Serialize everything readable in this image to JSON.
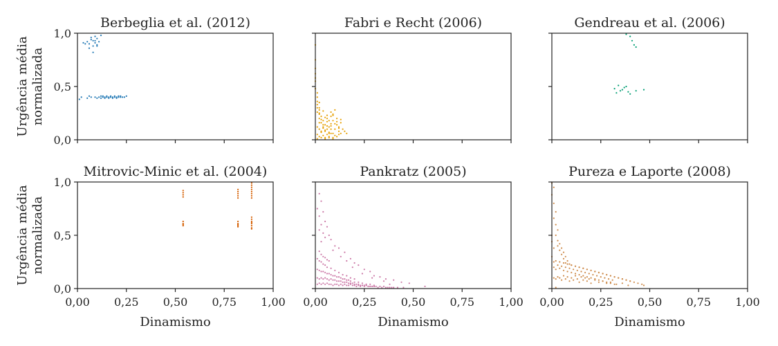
{
  "figure": {
    "xlabel": "Dinamismo",
    "ylabel_line1": "Urgência média",
    "ylabel_line2": "normalizada",
    "x_ticks": [
      "0,00",
      "0,25",
      "0,50",
      "0,75",
      "1,00"
    ],
    "y_ticks": [
      "0,0",
      "0,5",
      "1,0"
    ]
  },
  "chart_data": [
    {
      "type": "scatter",
      "title": "Berbeglia et al. (2012)",
      "color": "#1f77b4",
      "xlabel": "",
      "ylabel": "Urgência média normalizada",
      "xlim": [
        0,
        1
      ],
      "ylim": [
        0,
        1
      ],
      "grid": false,
      "x": [
        0.05,
        0.06,
        0.07,
        0.07,
        0.08,
        0.08,
        0.09,
        0.09,
        0.1,
        0.1,
        0.11,
        0.04,
        0.06,
        0.08,
        0.09,
        0.1,
        0.12,
        0.03,
        0.01,
        0.02,
        0.05,
        0.06,
        0.07,
        0.09,
        0.1,
        0.11,
        0.12,
        0.12,
        0.13,
        0.13,
        0.14,
        0.14,
        0.15,
        0.15,
        0.16,
        0.16,
        0.17,
        0.17,
        0.18,
        0.18,
        0.19,
        0.19,
        0.2,
        0.2,
        0.21,
        0.21,
        0.22,
        0.22,
        0.23,
        0.24,
        0.25
      ],
      "y": [
        0.92,
        0.9,
        0.94,
        0.96,
        0.88,
        0.93,
        0.91,
        0.97,
        0.89,
        0.95,
        0.92,
        0.9,
        0.86,
        0.82,
        0.93,
        0.88,
        0.98,
        0.91,
        0.38,
        0.4,
        0.39,
        0.41,
        0.4,
        0.4,
        0.39,
        0.4,
        0.41,
        0.39,
        0.4,
        0.41,
        0.4,
        0.39,
        0.4,
        0.41,
        0.4,
        0.39,
        0.4,
        0.41,
        0.4,
        0.39,
        0.4,
        0.41,
        0.4,
        0.39,
        0.41,
        0.4,
        0.4,
        0.41,
        0.4,
        0.4,
        0.41
      ]
    },
    {
      "type": "scatter",
      "title": "Fabri e Recht (2006)",
      "color": "#e69f00",
      "xlabel": "",
      "ylabel": "",
      "xlim": [
        0,
        1
      ],
      "ylim": [
        0,
        1
      ],
      "grid": false,
      "x": [
        0.0,
        0.0,
        0.0,
        0.0,
        0.0,
        0.01,
        0.01,
        0.01,
        0.01,
        0.02,
        0.02,
        0.01,
        0.02,
        0.03,
        0.02,
        0.04,
        0.03,
        0.05,
        0.04,
        0.06,
        0.05,
        0.07,
        0.06,
        0.08,
        0.07,
        0.09,
        0.08,
        0.1,
        0.09,
        0.11,
        0.1,
        0.12,
        0.11,
        0.13,
        0.12,
        0.14,
        0.13,
        0.15,
        0.16,
        0.01,
        0.02,
        0.03,
        0.04,
        0.05,
        0.06,
        0.07,
        0.08,
        0.09,
        0.1,
        0.11,
        0.12,
        0.01,
        0.02,
        0.03,
        0.04,
        0.05,
        0.06,
        0.07,
        0.08,
        0.09,
        0.02,
        0.04,
        0.06,
        0.08,
        0.1,
        0.12,
        0.03,
        0.05,
        0.07,
        0.09,
        0.11,
        0.13,
        0.01,
        0.03,
        0.05,
        0.07,
        0.09,
        0.02,
        0.04,
        0.06,
        0.08,
        0.0,
        0.01,
        0.0,
        0.02
      ],
      "y": [
        0.89,
        0.75,
        0.67,
        0.58,
        0.48,
        0.44,
        0.4,
        0.36,
        0.33,
        0.3,
        0.28,
        0.26,
        0.24,
        0.22,
        0.2,
        0.18,
        0.16,
        0.14,
        0.12,
        0.1,
        0.08,
        0.06,
        0.2,
        0.15,
        0.12,
        0.18,
        0.22,
        0.1,
        0.24,
        0.14,
        0.28,
        0.08,
        0.2,
        0.16,
        0.12,
        0.1,
        0.06,
        0.08,
        0.06,
        0.05,
        0.03,
        0.07,
        0.04,
        0.02,
        0.05,
        0.03,
        0.06,
        0.02,
        0.04,
        0.03,
        0.05,
        0.12,
        0.1,
        0.08,
        0.11,
        0.09,
        0.13,
        0.07,
        0.1,
        0.06,
        0.16,
        0.14,
        0.17,
        0.13,
        0.15,
        0.11,
        0.19,
        0.21,
        0.18,
        0.23,
        0.17,
        0.19,
        0.01,
        0.02,
        0.01,
        0.02,
        0.01,
        0.25,
        0.27,
        0.23,
        0.26,
        0.55,
        0.3,
        0.62,
        0.35
      ]
    },
    {
      "type": "scatter",
      "title": "Gendreau et al. (2006)",
      "color": "#009e73",
      "xlabel": "",
      "ylabel": "",
      "xlim": [
        0,
        1
      ],
      "ylim": [
        0,
        1
      ],
      "grid": false,
      "x": [
        0.38,
        0.4,
        0.41,
        0.42,
        0.43,
        0.32,
        0.33,
        0.34,
        0.35,
        0.36,
        0.37,
        0.38,
        0.39,
        0.4,
        0.43,
        0.47
      ],
      "y": [
        0.99,
        0.97,
        0.93,
        0.89,
        0.87,
        0.48,
        0.44,
        0.51,
        0.46,
        0.47,
        0.49,
        0.5,
        0.45,
        0.43,
        0.46,
        0.47
      ]
    },
    {
      "type": "scatter",
      "title": "Mitrovic-Minic et al. (2004)",
      "color": "#d55e00",
      "xlabel": "Dinamismo",
      "ylabel": "Urgência média normalizada",
      "xlim": [
        0,
        1
      ],
      "ylim": [
        0,
        1
      ],
      "grid": false,
      "x": [
        0.54,
        0.54,
        0.54,
        0.54,
        0.54,
        0.54,
        0.54,
        0.54,
        0.82,
        0.82,
        0.82,
        0.82,
        0.82,
        0.82,
        0.82,
        0.82,
        0.82,
        0.82,
        0.89,
        0.89,
        0.89,
        0.89,
        0.89,
        0.89,
        0.89,
        0.89,
        0.89,
        0.89,
        0.89,
        0.89,
        0.89,
        0.89,
        0.89,
        0.89
      ],
      "y": [
        0.92,
        0.9,
        0.88,
        0.86,
        0.63,
        0.61,
        0.6,
        0.59,
        0.93,
        0.91,
        0.89,
        0.87,
        0.85,
        0.63,
        0.61,
        0.6,
        0.59,
        0.58,
        0.99,
        0.97,
        0.95,
        0.93,
        0.91,
        0.89,
        0.87,
        0.85,
        0.67,
        0.65,
        0.63,
        0.61,
        0.59,
        0.57,
        0.56,
        0.62
      ]
    },
    {
      "type": "scatter",
      "title": "Pankratz (2005)",
      "color": "#cc79a7",
      "xlabel": "Dinamismo",
      "ylabel": "",
      "xlim": [
        0,
        1
      ],
      "ylim": [
        0,
        1
      ],
      "grid": false,
      "x": [
        0.02,
        0.03,
        0.01,
        0.04,
        0.02,
        0.05,
        0.03,
        0.06,
        0.02,
        0.04,
        0.07,
        0.05,
        0.08,
        0.03,
        0.1,
        0.12,
        0.09,
        0.15,
        0.13,
        0.18,
        0.16,
        0.2,
        0.22,
        0.19,
        0.25,
        0.28,
        0.24,
        0.3,
        0.33,
        0.29,
        0.36,
        0.4,
        0.35,
        0.44,
        0.48,
        0.38,
        0.56,
        0.01,
        0.02,
        0.03,
        0.04,
        0.05,
        0.06,
        0.07,
        0.08,
        0.09,
        0.1,
        0.11,
        0.12,
        0.13,
        0.14,
        0.15,
        0.16,
        0.17,
        0.18,
        0.19,
        0.2,
        0.21,
        0.22,
        0.23,
        0.24,
        0.25,
        0.26,
        0.27,
        0.28,
        0.29,
        0.3,
        0.31,
        0.32,
        0.33,
        0.34,
        0.35,
        0.36,
        0.37,
        0.38,
        0.39,
        0.4,
        0.42,
        0.45,
        0.01,
        0.02,
        0.03,
        0.04,
        0.05,
        0.06,
        0.07,
        0.08,
        0.09,
        0.1,
        0.11,
        0.12,
        0.13,
        0.14,
        0.15,
        0.16,
        0.17,
        0.18,
        0.19,
        0.2,
        0.21,
        0.22,
        0.23,
        0.24,
        0.25,
        0.26,
        0.27,
        0.28,
        0.29,
        0.3,
        0.01,
        0.02,
        0.03,
        0.04,
        0.05,
        0.06,
        0.07,
        0.08,
        0.09,
        0.1,
        0.11,
        0.12,
        0.13,
        0.14,
        0.15,
        0.16,
        0.17,
        0.18,
        0.2,
        0.22,
        0.24,
        0.26,
        0.28,
        0.3,
        0.01,
        0.02,
        0.03,
        0.04,
        0.05,
        0.06,
        0.08,
        0.1,
        0.12,
        0.14,
        0.16,
        0.18,
        0.2,
        0.02,
        0.03,
        0.04,
        0.05,
        0.06,
        0.07
      ],
      "y": [
        0.89,
        0.82,
        0.75,
        0.72,
        0.68,
        0.63,
        0.6,
        0.58,
        0.55,
        0.52,
        0.5,
        0.48,
        0.46,
        0.44,
        0.4,
        0.38,
        0.36,
        0.34,
        0.3,
        0.28,
        0.26,
        0.24,
        0.22,
        0.2,
        0.18,
        0.16,
        0.14,
        0.12,
        0.11,
        0.1,
        0.09,
        0.08,
        0.07,
        0.06,
        0.05,
        0.04,
        0.02,
        0.04,
        0.05,
        0.04,
        0.05,
        0.04,
        0.05,
        0.04,
        0.04,
        0.03,
        0.04,
        0.04,
        0.03,
        0.04,
        0.03,
        0.04,
        0.03,
        0.03,
        0.04,
        0.03,
        0.03,
        0.02,
        0.03,
        0.02,
        0.03,
        0.02,
        0.03,
        0.02,
        0.02,
        0.02,
        0.02,
        0.02,
        0.01,
        0.02,
        0.01,
        0.02,
        0.01,
        0.01,
        0.01,
        0.01,
        0.01,
        0.01,
        0.01,
        0.1,
        0.09,
        0.1,
        0.09,
        0.1,
        0.09,
        0.08,
        0.09,
        0.08,
        0.08,
        0.07,
        0.07,
        0.07,
        0.06,
        0.06,
        0.06,
        0.05,
        0.05,
        0.05,
        0.04,
        0.04,
        0.04,
        0.03,
        0.03,
        0.03,
        0.03,
        0.02,
        0.02,
        0.02,
        0.02,
        0.18,
        0.17,
        0.16,
        0.16,
        0.15,
        0.14,
        0.14,
        0.13,
        0.12,
        0.12,
        0.11,
        0.11,
        0.1,
        0.09,
        0.09,
        0.08,
        0.08,
        0.07,
        0.06,
        0.06,
        0.05,
        0.04,
        0.04,
        0.03,
        0.28,
        0.26,
        0.25,
        0.23,
        0.22,
        0.2,
        0.19,
        0.17,
        0.15,
        0.13,
        0.12,
        0.1,
        0.09,
        0.35,
        0.32,
        0.3,
        0.29,
        0.27,
        0.26
      ]
    },
    {
      "type": "scatter",
      "title": "Pureza e Laporte (2008)",
      "color": "#cd8a4a",
      "xlabel": "Dinamismo",
      "ylabel": "",
      "xlim": [
        0,
        1
      ],
      "ylim": [
        0,
        1
      ],
      "grid": false,
      "x": [
        0.0,
        0.01,
        0.0,
        0.01,
        0.02,
        0.01,
        0.02,
        0.03,
        0.02,
        0.03,
        0.04,
        0.03,
        0.05,
        0.04,
        0.06,
        0.05,
        0.07,
        0.06,
        0.08,
        0.07,
        0.09,
        0.1,
        0.12,
        0.14,
        0.16,
        0.18,
        0.2,
        0.22,
        0.24,
        0.26,
        0.28,
        0.3,
        0.32,
        0.34,
        0.36,
        0.38,
        0.4,
        0.42,
        0.44,
        0.46,
        0.47,
        0.01,
        0.02,
        0.03,
        0.04,
        0.05,
        0.06,
        0.07,
        0.08,
        0.09,
        0.1,
        0.11,
        0.12,
        0.13,
        0.14,
        0.15,
        0.16,
        0.17,
        0.18,
        0.19,
        0.2,
        0.22,
        0.24,
        0.26,
        0.28,
        0.3,
        0.33,
        0.36,
        0.39,
        0.01,
        0.02,
        0.03,
        0.04,
        0.05,
        0.06,
        0.07,
        0.08,
        0.09,
        0.1,
        0.11,
        0.12,
        0.13,
        0.14,
        0.15,
        0.16,
        0.17,
        0.18,
        0.19,
        0.2,
        0.21,
        0.22,
        0.23,
        0.24,
        0.25,
        0.26,
        0.27,
        0.28,
        0.29,
        0.3,
        0.31,
        0.32,
        0.02,
        0.04,
        0.06,
        0.08,
        0.1,
        0.12,
        0.14,
        0.16,
        0.18,
        0.2,
        0.22,
        0.24,
        0.26,
        0.28,
        0.3,
        0.32,
        0.34,
        0.36,
        0.38,
        0.4,
        0.0,
        0.0,
        0.01,
        0.0,
        0.01,
        0.02
      ],
      "y": [
        0.99,
        0.95,
        0.88,
        0.8,
        0.72,
        0.66,
        0.6,
        0.55,
        0.5,
        0.45,
        0.42,
        0.4,
        0.38,
        0.36,
        0.34,
        0.32,
        0.3,
        0.28,
        0.26,
        0.24,
        0.23,
        0.22,
        0.21,
        0.2,
        0.19,
        0.18,
        0.17,
        0.16,
        0.15,
        0.14,
        0.13,
        0.12,
        0.11,
        0.1,
        0.09,
        0.08,
        0.07,
        0.06,
        0.05,
        0.04,
        0.03,
        0.1,
        0.09,
        0.11,
        0.1,
        0.08,
        0.12,
        0.09,
        0.11,
        0.07,
        0.1,
        0.08,
        0.12,
        0.09,
        0.06,
        0.11,
        0.08,
        0.1,
        0.07,
        0.09,
        0.05,
        0.08,
        0.06,
        0.07,
        0.05,
        0.06,
        0.04,
        0.05,
        0.03,
        0.2,
        0.18,
        0.22,
        0.19,
        0.21,
        0.17,
        0.2,
        0.16,
        0.19,
        0.15,
        0.18,
        0.14,
        0.17,
        0.13,
        0.16,
        0.12,
        0.15,
        0.11,
        0.14,
        0.1,
        0.13,
        0.09,
        0.12,
        0.08,
        0.11,
        0.07,
        0.1,
        0.06,
        0.09,
        0.05,
        0.08,
        0.04,
        0.26,
        0.25,
        0.24,
        0.23,
        0.22,
        0.21,
        0.2,
        0.19,
        0.18,
        0.17,
        0.16,
        0.15,
        0.14,
        0.13,
        0.12,
        0.11,
        0.1,
        0.09,
        0.08,
        0.07,
        0.5,
        0.44,
        0.38,
        0.3,
        0.25,
        0.01
      ]
    }
  ]
}
